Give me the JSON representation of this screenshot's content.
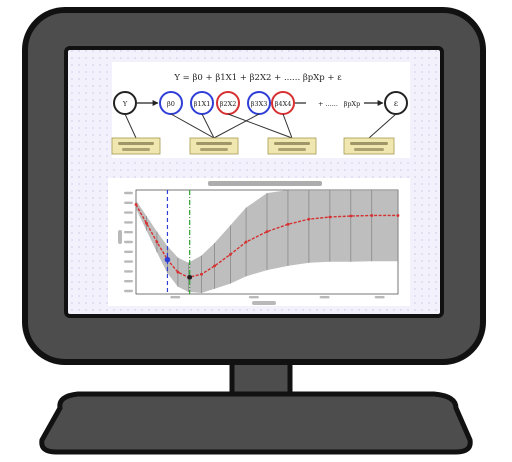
{
  "colors": {
    "bezel": "#4d4d4d",
    "bezel_outline": "#111111",
    "screen_background": "#f3f1fb",
    "screen_dots": "#d6d2ec",
    "panel": "#ffffff",
    "blue_circle": "#2f3fd6",
    "red_circle": "#d63030",
    "note_box": "#efe6b0",
    "note_border": "#a59a50",
    "band": "#a8a8a8",
    "curve": "#d63030",
    "blue_marker": "#2f3fd6",
    "green_marker": "#2aa02a"
  },
  "equation": {
    "top_line": "Y = β0 + β1X1 + β2X2 + ...... βpXp + ε",
    "nodes": [
      {
        "text": "Y",
        "ring": "black"
      },
      {
        "text": "β0",
        "ring": "blue"
      },
      {
        "text": "β1X1",
        "ring": "blue"
      },
      {
        "text": "β2X2",
        "ring": "red"
      },
      {
        "text": "β3X3",
        "ring": "blue"
      },
      {
        "text": "β4X4",
        "ring": "red"
      }
    ],
    "tail_text": "+ ......",
    "tail_term": "βpXp",
    "error_node": "ε"
  },
  "chart_data": {
    "type": "line",
    "title": "",
    "xlabel": "",
    "ylabel": "",
    "xlim": [
      0,
      1
    ],
    "ylim": [
      0,
      1
    ],
    "grid": false,
    "x": [
      0,
      0.04,
      0.08,
      0.12,
      0.16,
      0.2,
      0.25,
      0.3,
      0.36,
      0.42,
      0.5,
      0.58,
      0.66,
      0.74,
      0.82,
      0.9,
      1.0
    ],
    "series": [
      {
        "values": [
          0.86,
          0.68,
          0.5,
          0.33,
          0.21,
          0.16,
          0.19,
          0.27,
          0.38,
          0.5,
          0.6,
          0.67,
          0.72,
          0.74,
          0.75,
          0.755,
          0.755
        ],
        "band_half_width": [
          0.04,
          0.07,
          0.1,
          0.13,
          0.14,
          0.14,
          0.18,
          0.22,
          0.28,
          0.33,
          0.37,
          0.4,
          0.42,
          0.43,
          0.44,
          0.44,
          0.44
        ]
      }
    ],
    "vertical_markers": [
      {
        "x": 0.12,
        "color": "blue",
        "style": "dashed"
      },
      {
        "x": 0.205,
        "color": "green",
        "style": "dash-dot"
      }
    ]
  }
}
